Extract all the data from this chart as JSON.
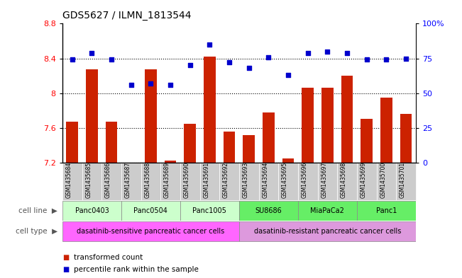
{
  "title": "GDS5627 / ILMN_1813544",
  "samples": [
    "GSM1435684",
    "GSM1435685",
    "GSM1435686",
    "GSM1435687",
    "GSM1435688",
    "GSM1435689",
    "GSM1435690",
    "GSM1435691",
    "GSM1435692",
    "GSM1435693",
    "GSM1435694",
    "GSM1435695",
    "GSM1435696",
    "GSM1435697",
    "GSM1435698",
    "GSM1435699",
    "GSM1435700",
    "GSM1435701"
  ],
  "transformed_count": [
    7.67,
    8.27,
    7.67,
    7.2,
    8.27,
    7.22,
    7.65,
    8.42,
    7.56,
    7.52,
    7.78,
    7.25,
    8.06,
    8.06,
    8.2,
    7.7,
    7.95,
    7.76
  ],
  "percentile_rank": [
    74,
    79,
    74,
    56,
    57,
    56,
    70,
    85,
    72,
    68,
    76,
    63,
    79,
    80,
    79,
    74,
    74,
    75
  ],
  "ymin": 7.2,
  "ymax": 8.8,
  "yticks_left": [
    7.2,
    7.6,
    8.0,
    8.4,
    8.8
  ],
  "yticks_right": [
    0,
    25,
    50,
    75,
    100
  ],
  "ytick_labels_right": [
    "0",
    "25",
    "50",
    "75",
    "100%"
  ],
  "bar_color": "#cc2200",
  "dot_color": "#0000cc",
  "cell_lines": [
    {
      "label": "Panc0403",
      "start": 0,
      "end": 2,
      "color": "#ccffcc"
    },
    {
      "label": "Panc0504",
      "start": 3,
      "end": 5,
      "color": "#ccffcc"
    },
    {
      "label": "Panc1005",
      "start": 6,
      "end": 8,
      "color": "#ccffcc"
    },
    {
      "label": "SU8686",
      "start": 9,
      "end": 11,
      "color": "#66ee66"
    },
    {
      "label": "MiaPaCa2",
      "start": 12,
      "end": 14,
      "color": "#66ee66"
    },
    {
      "label": "Panc1",
      "start": 15,
      "end": 17,
      "color": "#66ee66"
    }
  ],
  "cell_types": [
    {
      "label": "dasatinib-sensitive pancreatic cancer cells",
      "start": 0,
      "end": 8,
      "color": "#ff66ff"
    },
    {
      "label": "dasatinib-resistant pancreatic cancer cells",
      "start": 9,
      "end": 17,
      "color": "#dd99dd"
    }
  ],
  "sample_bg_color": "#cccccc",
  "legend_red_label": "transformed count",
  "legend_blue_label": "percentile rank within the sample"
}
